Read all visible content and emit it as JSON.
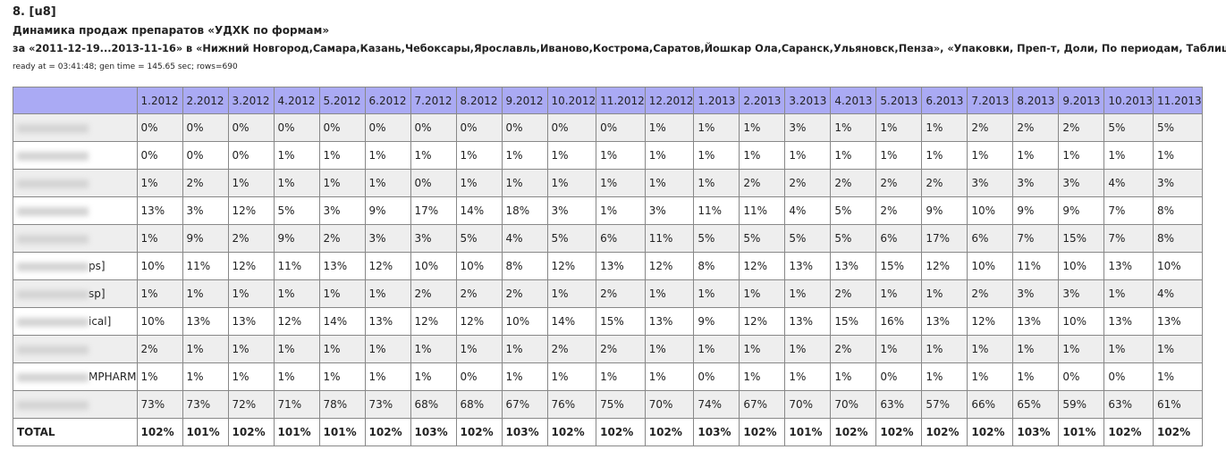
{
  "header": {
    "number": "8. [u8]",
    "title": "Динамика продаж препаратов «УДХК по формам»",
    "subtitle": "за «2011-12-19...2013-11-16» в «Нижний Новгород,Самара,Казань,Чебоксары,Ярославль,Иваново,Кострома,Саратов,Йошкар Ола,Саранск,Ульяновск,Пенза», «Упаковки, Преп-т, Доли, По периодам, Таблица»",
    "meta": "ready at = 03:41:48; gen time = 145.65 sec; rows=690"
  },
  "table": {
    "columns": [
      "1.2012",
      "2.2012",
      "3.2012",
      "4.2012",
      "5.2012",
      "6.2012",
      "7.2012",
      "8.2012",
      "9.2012",
      "10.2012",
      "11.2012",
      "12.2012",
      "1.2013",
      "2.2013",
      "3.2013",
      "4.2013",
      "5.2013",
      "6.2013",
      "7.2013",
      "8.2013",
      "9.2013",
      "10.2013",
      "11.2013"
    ],
    "rows": [
      {
        "label": null,
        "cells": [
          "0%",
          "0%",
          "0%",
          "0%",
          "0%",
          "0%",
          "0%",
          "0%",
          "0%",
          "0%",
          "0%",
          "1%",
          "1%",
          "1%",
          "3%",
          "1%",
          "1%",
          "1%",
          "2%",
          "2%",
          "2%",
          "5%",
          "5%"
        ]
      },
      {
        "label": null,
        "cells": [
          "0%",
          "0%",
          "0%",
          "1%",
          "1%",
          "1%",
          "1%",
          "1%",
          "1%",
          "1%",
          "1%",
          "1%",
          "1%",
          "1%",
          "1%",
          "1%",
          "1%",
          "1%",
          "1%",
          "1%",
          "1%",
          "1%",
          "1%"
        ]
      },
      {
        "label": null,
        "cells": [
          "1%",
          "2%",
          "1%",
          "1%",
          "1%",
          "1%",
          "0%",
          "1%",
          "1%",
          "1%",
          "1%",
          "1%",
          "1%",
          "2%",
          "2%",
          "2%",
          "2%",
          "2%",
          "3%",
          "3%",
          "3%",
          "4%",
          "3%"
        ]
      },
      {
        "label": null,
        "cells": [
          "13%",
          "3%",
          "12%",
          "5%",
          "3%",
          "9%",
          "17%",
          "14%",
          "18%",
          "3%",
          "1%",
          "3%",
          "11%",
          "11%",
          "4%",
          "5%",
          "2%",
          "9%",
          "10%",
          "9%",
          "9%",
          "7%",
          "8%"
        ]
      },
      {
        "label": null,
        "cells": [
          "1%",
          "9%",
          "2%",
          "9%",
          "2%",
          "3%",
          "3%",
          "5%",
          "4%",
          "5%",
          "6%",
          "11%",
          "5%",
          "5%",
          "5%",
          "5%",
          "6%",
          "17%",
          "6%",
          "7%",
          "15%",
          "7%",
          "8%"
        ]
      },
      {
        "label": "ps]",
        "cells": [
          "10%",
          "11%",
          "12%",
          "11%",
          "13%",
          "12%",
          "10%",
          "10%",
          "8%",
          "12%",
          "13%",
          "12%",
          "8%",
          "12%",
          "13%",
          "13%",
          "15%",
          "12%",
          "10%",
          "11%",
          "10%",
          "13%",
          "10%"
        ]
      },
      {
        "label": "sp]",
        "cells": [
          "1%",
          "1%",
          "1%",
          "1%",
          "1%",
          "1%",
          "2%",
          "2%",
          "2%",
          "1%",
          "2%",
          "1%",
          "1%",
          "1%",
          "1%",
          "2%",
          "1%",
          "1%",
          "2%",
          "3%",
          "3%",
          "1%",
          "4%"
        ]
      },
      {
        "label": "ical]",
        "cells": [
          "10%",
          "13%",
          "13%",
          "12%",
          "14%",
          "13%",
          "12%",
          "12%",
          "10%",
          "14%",
          "15%",
          "13%",
          "9%",
          "12%",
          "13%",
          "15%",
          "16%",
          "13%",
          "12%",
          "13%",
          "10%",
          "13%",
          "13%"
        ]
      },
      {
        "label": null,
        "cells": [
          "2%",
          "1%",
          "1%",
          "1%",
          "1%",
          "1%",
          "1%",
          "1%",
          "1%",
          "2%",
          "2%",
          "1%",
          "1%",
          "1%",
          "1%",
          "2%",
          "1%",
          "1%",
          "1%",
          "1%",
          "1%",
          "1%",
          "1%"
        ]
      },
      {
        "label": "MPHARM",
        "cells": [
          "1%",
          "1%",
          "1%",
          "1%",
          "1%",
          "1%",
          "1%",
          "0%",
          "1%",
          "1%",
          "1%",
          "1%",
          "0%",
          "1%",
          "1%",
          "1%",
          "0%",
          "1%",
          "1%",
          "1%",
          "0%",
          "0%",
          "1%"
        ]
      },
      {
        "label": null,
        "cells": [
          "73%",
          "73%",
          "72%",
          "71%",
          "78%",
          "73%",
          "68%",
          "68%",
          "67%",
          "76%",
          "75%",
          "70%",
          "74%",
          "67%",
          "70%",
          "70%",
          "63%",
          "57%",
          "66%",
          "65%",
          "59%",
          "63%",
          "61%"
        ]
      },
      {
        "label": "TOTAL",
        "cells": [
          "102%",
          "101%",
          "102%",
          "101%",
          "101%",
          "102%",
          "103%",
          "102%",
          "103%",
          "102%",
          "102%",
          "102%",
          "103%",
          "102%",
          "101%",
          "102%",
          "102%",
          "102%",
          "102%",
          "103%",
          "101%",
          "102%",
          "102%"
        ]
      }
    ]
  }
}
